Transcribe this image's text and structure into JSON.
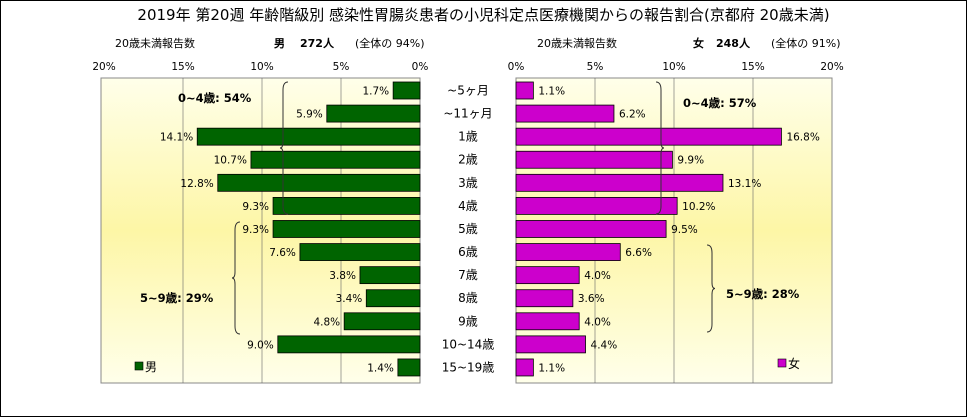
{
  "title": "2019年 第20週 年齢階級別 感染性胃腸炎患者の小児科定点医療機関からの報告割合(京都府 20歳未満)",
  "male_header": {
    "label": "20歳未満報告数",
    "sex": "男",
    "count": "272人",
    "ratio": "(全体の  94%)"
  },
  "female_header": {
    "label": "20歳未満報告数",
    "sex": "女",
    "count": "248人",
    "ratio": "(全体の  91%)"
  },
  "chart_data": {
    "type": "bar",
    "layout": "population-pyramid",
    "categories": [
      "~5ヶ月",
      "~11ヶ月",
      "1歳",
      "2歳",
      "3歳",
      "4歳",
      "5歳",
      "6歳",
      "7歳",
      "8歳",
      "9歳",
      "10~14歳",
      "15~19歳"
    ],
    "series": [
      {
        "name": "男",
        "values": [
          1.7,
          5.9,
          14.1,
          10.7,
          12.8,
          9.3,
          9.3,
          7.6,
          3.8,
          3.4,
          4.8,
          9.0,
          1.4
        ],
        "color": "#006400"
      },
      {
        "name": "女",
        "values": [
          1.1,
          6.2,
          16.8,
          9.9,
          13.1,
          10.2,
          9.5,
          6.6,
          4.0,
          3.6,
          4.0,
          4.4,
          1.1
        ],
        "color": "#cc00cc"
      }
    ],
    "value_labels_male": [
      "1.7%",
      "5.9%",
      "14.1%",
      "10.7%",
      "12.8%",
      "9.3%",
      "9.3%",
      "7.6%",
      "3.8%",
      "3.4%",
      "4.8%",
      "9.0%",
      "1.4%"
    ],
    "value_labels_female": [
      "1.1%",
      "6.2%",
      "16.8%",
      "9.9%",
      "13.1%",
      "10.2%",
      "9.5%",
      "6.6%",
      "4.0%",
      "3.6%",
      "4.0%",
      "4.4%",
      "1.1%"
    ],
    "x_range": [
      0,
      20
    ],
    "x_ticks_male": [
      "20%",
      "15%",
      "10%",
      "5%",
      "0%"
    ],
    "x_ticks_female": [
      "0%",
      "5%",
      "10%",
      "15%",
      "20%"
    ],
    "group_annotations": {
      "male_0_4": "0~4歳: 54%",
      "male_5_9": "5~9歳: 29%",
      "female_0_4": "0~4歳: 57%",
      "female_5_9": "5~9歳: 28%"
    },
    "legend_position": "bottom-left / bottom-right of each panel",
    "background": "light yellow gradient"
  }
}
